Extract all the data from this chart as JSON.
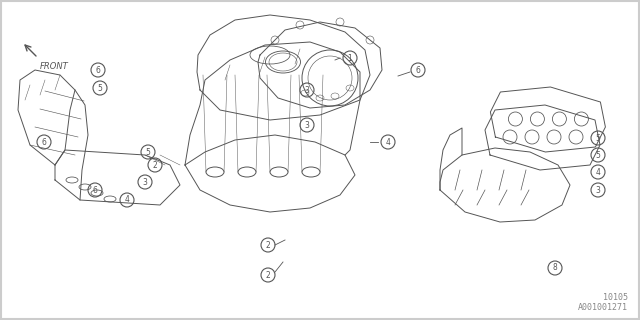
{
  "background_color": "#ffffff",
  "border_color": "#cccccc",
  "diagram_color": "#555555",
  "ref_code_top": "10105",
  "ref_code_bottom": "A001001271",
  "front_label": "FRONT",
  "figsize": [
    6.4,
    3.2
  ],
  "dpi": 100
}
